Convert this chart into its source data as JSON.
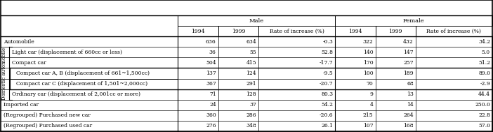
{
  "col_labels_row2": [
    "1994",
    "1999",
    "Rate of increase (%)",
    "1994",
    "1999",
    "Rate of increase (%)"
  ],
  "rows": [
    {
      "label": "Automobile",
      "indent": 0,
      "domestic": false,
      "sub2": false,
      "male_1994": "636",
      "male_1999": "634",
      "male_rate": "-0.3",
      "female_1994": "322",
      "female_1999": "432",
      "female_rate": "34.2"
    },
    {
      "label": "Light car (displacement of 660cc or less)",
      "indent": 1,
      "domestic": true,
      "sub2": false,
      "male_1994": "36",
      "male_1999": "55",
      "male_rate": "52.8",
      "female_1994": "140",
      "female_1999": "147",
      "female_rate": "5.0"
    },
    {
      "label": "Compact car",
      "indent": 1,
      "domestic": true,
      "sub2": false,
      "male_1994": "504",
      "male_1999": "415",
      "male_rate": "-17.7",
      "female_1994": "170",
      "female_1999": "257",
      "female_rate": "51.2"
    },
    {
      "label": "Compact car A, B (displacement of 661~1,500cc)",
      "indent": 2,
      "domestic": true,
      "sub2": true,
      "male_1994": "137",
      "male_1999": "124",
      "male_rate": "-9.5",
      "female_1994": "100",
      "female_1999": "189",
      "female_rate": "89.0"
    },
    {
      "label": "Compact car C (displacement of 1,501~2,000cc)",
      "indent": 2,
      "domestic": true,
      "sub2": true,
      "male_1994": "367",
      "male_1999": "291",
      "male_rate": "-20.7",
      "female_1994": "70",
      "female_1999": "68",
      "female_rate": "-2.9"
    },
    {
      "label": "Ordinary car (displacement of 2,001cc or more)",
      "indent": 1,
      "domestic": true,
      "sub2": false,
      "male_1994": "71",
      "male_1999": "128",
      "male_rate": "80.3",
      "female_1994": "9",
      "female_1999": "13",
      "female_rate": "44.4"
    },
    {
      "label": "Imported car",
      "indent": 0,
      "domestic": false,
      "sub2": false,
      "male_1994": "24",
      "male_1999": "37",
      "male_rate": "54.2",
      "female_1994": "4",
      "female_1999": "14",
      "female_rate": "250.0"
    },
    {
      "label": "(Regrouped) Purchased new car",
      "indent": 0,
      "domestic": false,
      "sub2": false,
      "male_1994": "360",
      "male_1999": "286",
      "male_rate": "-20.6",
      "female_1994": "215",
      "female_1999": "264",
      "female_rate": "22.8"
    },
    {
      "label": "(Regrouped) Purchased used car",
      "indent": 0,
      "domestic": false,
      "sub2": false,
      "male_1994": "276",
      "male_1999": "348",
      "male_rate": "26.1",
      "female_1994": "107",
      "female_1999": "168",
      "female_rate": "57.0"
    }
  ],
  "font_size": 5.5,
  "header_font_size": 6.0,
  "bg_color": "#ffffff"
}
